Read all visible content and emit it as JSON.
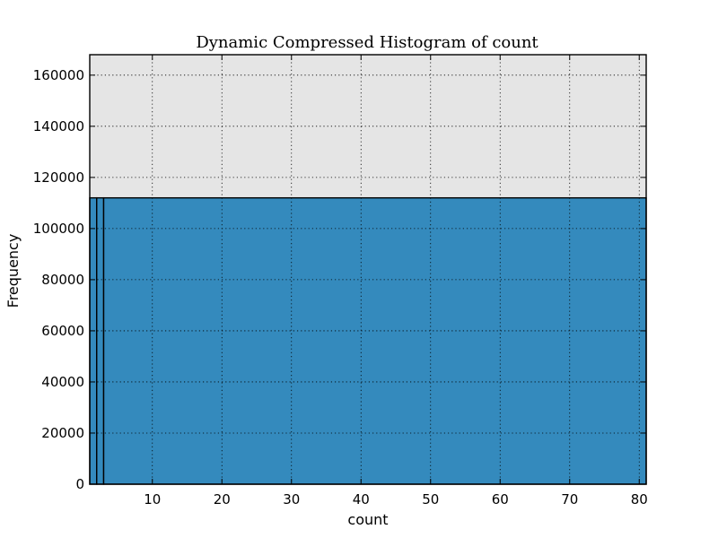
{
  "chart_data": {
    "type": "bar",
    "title": "Dynamic Compressed Histogram of count",
    "xlabel": "count",
    "ylabel": "Frequency",
    "xlim": [
      1,
      81
    ],
    "ylim": [
      0,
      168000
    ],
    "xticks": [
      10,
      20,
      30,
      40,
      50,
      60,
      70,
      80
    ],
    "yticks": [
      0,
      20000,
      40000,
      60000,
      80000,
      100000,
      120000,
      140000,
      160000
    ],
    "grid": true,
    "bins": [
      {
        "start": 1,
        "end": 2,
        "value": 112000
      },
      {
        "start": 2,
        "end": 3,
        "value": 112000
      },
      {
        "start": 3,
        "end": 81,
        "value": 112000
      }
    ],
    "colors": {
      "bar_fill": "#348abd",
      "bar_edge": "#000000",
      "plot_background": "#e5e5e5",
      "grid": "#000000"
    }
  }
}
